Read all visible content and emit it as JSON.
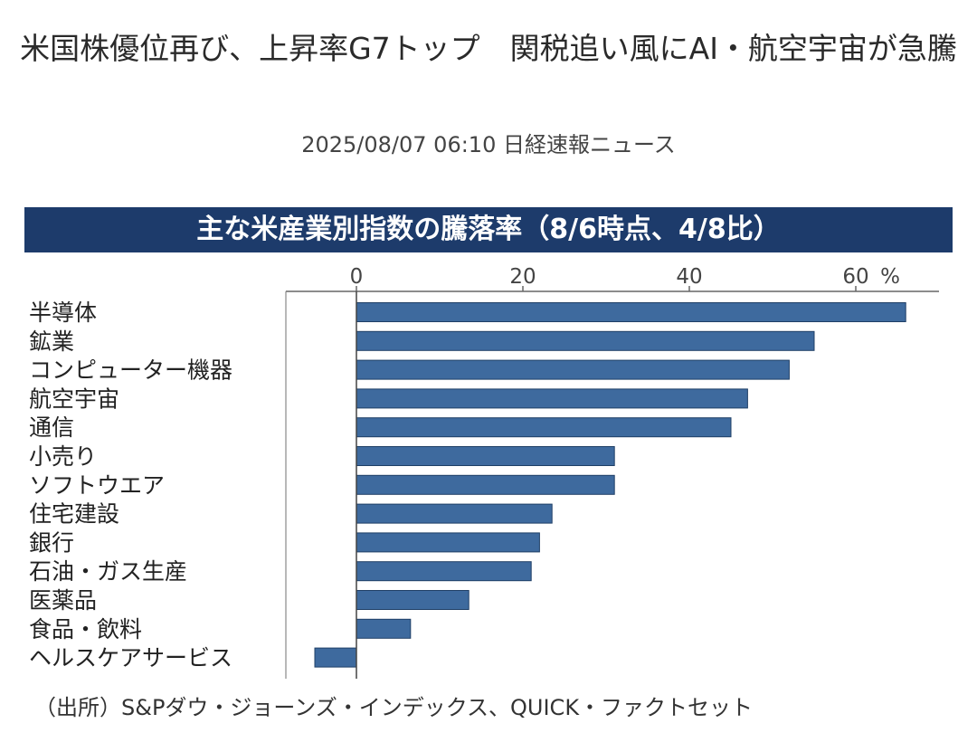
{
  "article": {
    "headline": "米国株優位再び、上昇率G7トップ　関税追い風にAI・航空宇宙が急騰",
    "dateline": "2025/08/07 06:10 日経速報ニュース"
  },
  "chart_data": {
    "type": "bar",
    "orientation": "horizontal",
    "title": "主な米産業別指数の騰落率（8/6時点、4/8比）",
    "categories": [
      "半導体",
      "鉱業",
      "コンピューター機器",
      "航空宇宙",
      "通信",
      "小売り",
      "ソフトウエア",
      "住宅建設",
      "銀行",
      "石油・ガス生産",
      "医薬品",
      "食品・飲料",
      "ヘルスケアサービス"
    ],
    "values": [
      66,
      55,
      52,
      47,
      45,
      31,
      31,
      23.5,
      22,
      21,
      13.5,
      6.5,
      -5
    ],
    "x_ticks": [
      "0",
      "20",
      "40",
      "60"
    ],
    "x_tick_values": [
      0,
      20,
      40,
      60
    ],
    "unit": "%",
    "xlim": [
      -8,
      70
    ],
    "grid": false,
    "bar_color": "#3e6a9e",
    "banner_color": "#1d3b6b",
    "source": "（出所）S&Pダウ・ジョーンズ・インデックス、QUICK・ファクトセット"
  }
}
